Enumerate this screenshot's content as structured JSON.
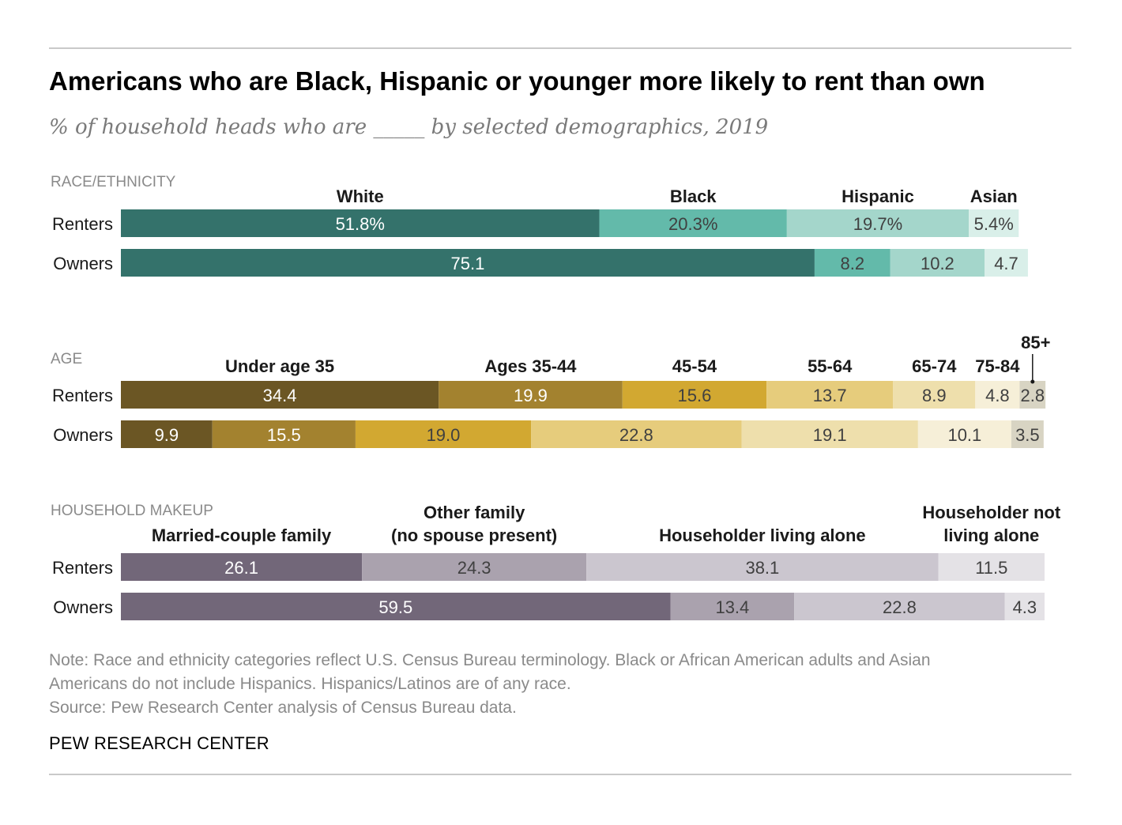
{
  "header": {
    "title": "Americans who are Black, Hispanic or younger more likely to rent than own",
    "subtitle": "% of household heads who are _____ by selected demographics, 2019"
  },
  "footer": {
    "note_line1": "Note: Race and ethnicity categories reflect U.S. Census Bureau terminology. Black or African American adults and Asian",
    "note_line2": "Americans do not include Hispanics. Hispanics/Latinos are of any race.",
    "source": "Source: Pew Research Center analysis of Census Bureau data.",
    "brand": "PEW RESEARCH CENTER"
  },
  "chart_data": [
    {
      "type": "bar",
      "stacked": true,
      "orientation": "horizontal",
      "section_label": "RACE/ETHNICITY",
      "rows": [
        "Renters",
        "Owners"
      ],
      "categories": [
        "White",
        "Black",
        "Hispanic",
        "Asian"
      ],
      "colors": [
        "#34726b",
        "#63baaa",
        "#a4d6cb",
        "#d9efe9"
      ],
      "values": {
        "Renters": [
          51.8,
          20.3,
          19.7,
          5.4
        ],
        "Owners": [
          75.1,
          8.2,
          10.2,
          4.7
        ]
      },
      "labels": {
        "Renters": [
          "51.8%",
          "20.3%",
          "19.7%",
          "5.4%"
        ],
        "Owners": [
          "75.1",
          "8.2",
          "10.2",
          "4.7"
        ]
      },
      "label_colors": {
        "Renters": [
          "#ffffff",
          "#404040",
          "#404040",
          "#404040"
        ],
        "Owners": [
          "#ffffff",
          "#404040",
          "#404040",
          "#404040"
        ]
      }
    },
    {
      "type": "bar",
      "stacked": true,
      "orientation": "horizontal",
      "section_label": "AGE",
      "rows": [
        "Renters",
        "Owners"
      ],
      "categories": [
        "Under age 35",
        "Ages 35-44",
        "45-54",
        "55-64",
        "65-74",
        "75-84",
        "85+"
      ],
      "colors": [
        "#6b5624",
        "#a3822f",
        "#d2a831",
        "#e6cc7c",
        "#eedfac",
        "#f6efd8",
        "#d8d4c3"
      ],
      "values": {
        "Renters": [
          34.4,
          19.9,
          15.6,
          13.7,
          8.9,
          4.8,
          2.8
        ],
        "Owners": [
          9.9,
          15.5,
          19.0,
          22.8,
          19.1,
          10.1,
          3.5
        ]
      },
      "labels": {
        "Renters": [
          "34.4",
          "19.9",
          "15.6",
          "13.7",
          "8.9",
          "4.8",
          "2.8"
        ],
        "Owners": [
          "9.9",
          "15.5",
          "19.0",
          "22.8",
          "19.1",
          "10.1",
          "3.5"
        ]
      },
      "label_colors": {
        "Renters": [
          "#ffffff",
          "#ffffff",
          "#404040",
          "#404040",
          "#404040",
          "#404040",
          "#404040"
        ],
        "Owners": [
          "#ffffff",
          "#ffffff",
          "#404040",
          "#404040",
          "#404040",
          "#404040",
          "#404040"
        ]
      }
    },
    {
      "type": "bar",
      "stacked": true,
      "orientation": "horizontal",
      "section_label": "HOUSEHOLD MAKEUP",
      "rows": [
        "Renters",
        "Owners"
      ],
      "categories": [
        "Married-couple family",
        "Other family (no spouse present)",
        "Householder living alone",
        "Householder not living alone"
      ],
      "category_label_lines": [
        [
          "Married-couple family"
        ],
        [
          "Other family",
          "(no spouse present)"
        ],
        [
          "Householder living alone"
        ],
        [
          "Householder not",
          "living alone"
        ]
      ],
      "colors": [
        "#726779",
        "#aaa2ae",
        "#cbc6cf",
        "#e4e2e6"
      ],
      "values": {
        "Renters": [
          26.1,
          24.3,
          38.1,
          11.5
        ],
        "Owners": [
          59.5,
          13.4,
          22.8,
          4.3
        ]
      },
      "labels": {
        "Renters": [
          "26.1",
          "24.3",
          "38.1",
          "11.5"
        ],
        "Owners": [
          "59.5",
          "13.4",
          "22.8",
          "4.3"
        ]
      },
      "label_colors": {
        "Renters": [
          "#ffffff",
          "#404040",
          "#404040",
          "#404040"
        ],
        "Owners": [
          "#ffffff",
          "#404040",
          "#404040",
          "#404040"
        ]
      }
    }
  ]
}
